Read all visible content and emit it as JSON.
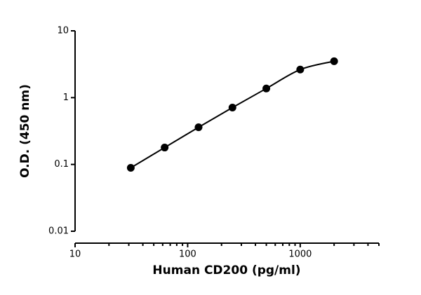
{
  "chart_data": {
    "type": "scatter",
    "x_label": "Human CD200 (pg/ml)",
    "y_label": "O.D. (450 nm)",
    "x": [
      31.25,
      62.5,
      125,
      250,
      500,
      1000,
      2000
    ],
    "values": [
      0.089,
      0.179,
      0.36,
      0.71,
      1.37,
      2.63,
      3.51
    ],
    "color": "#000000",
    "fit_line": true,
    "x_scale": "log",
    "y_scale": "log",
    "xlim": [
      10,
      5000
    ],
    "ylim": [
      0.01,
      10
    ],
    "xticks": [
      10,
      100,
      1000
    ],
    "yticks": [
      0.01,
      0.1,
      1,
      10
    ]
  }
}
